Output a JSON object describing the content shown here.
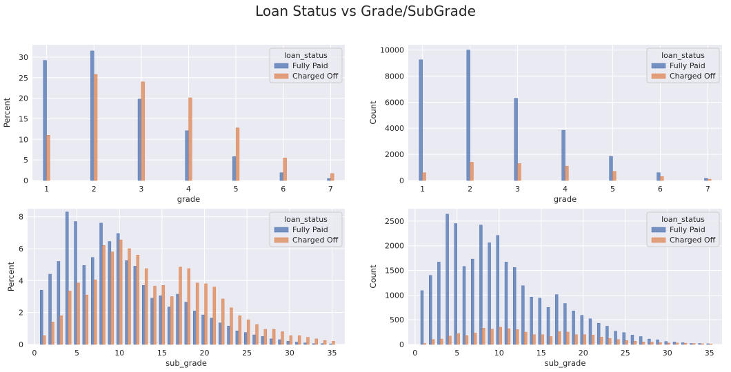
{
  "title": "Loan Status vs Grade/SubGrade",
  "colors": {
    "fully_paid": "#4c72b0",
    "charged_off": "#dd8452",
    "panel_bg": "#eaeaf2",
    "grid": "#ffffff"
  },
  "chart_data": [
    {
      "type": "bar",
      "xlabel": "grade",
      "ylabel": "Percent",
      "xlim": [
        0.7,
        7.3
      ],
      "ylim": [
        0,
        33
      ],
      "xticks": [
        1,
        2,
        3,
        4,
        5,
        6,
        7
      ],
      "yticks": [
        0,
        5,
        10,
        15,
        20,
        25,
        30
      ],
      "grid": true,
      "legend": {
        "title": "loan_status",
        "placement": "top-right"
      },
      "categories": [
        1,
        2,
        3,
        4,
        5,
        6,
        7
      ],
      "series": [
        {
          "name": "Fully Paid",
          "values": [
            29.2,
            31.5,
            19.8,
            12.1,
            5.8,
            1.9,
            0.5
          ]
        },
        {
          "name": "Charged Off",
          "values": [
            11.0,
            25.8,
            24.0,
            20.1,
            12.8,
            5.5,
            1.7
          ]
        }
      ]
    },
    {
      "type": "bar",
      "xlabel": "grade",
      "ylabel": "Count",
      "xlim": [
        0.7,
        7.3
      ],
      "ylim": [
        0,
        10400
      ],
      "xticks": [
        1,
        2,
        3,
        4,
        5,
        6,
        7
      ],
      "yticks": [
        0,
        2000,
        4000,
        6000,
        8000,
        10000
      ],
      "grid": true,
      "legend": {
        "title": "loan_status",
        "placement": "top-right"
      },
      "categories": [
        1,
        2,
        3,
        4,
        5,
        6,
        7
      ],
      "series": [
        {
          "name": "Fully Paid",
          "values": [
            9250,
            10000,
            6300,
            3850,
            1850,
            600,
            170
          ]
        },
        {
          "name": "Charged Off",
          "values": [
            600,
            1400,
            1300,
            1100,
            700,
            300,
            100
          ]
        }
      ]
    },
    {
      "type": "bar",
      "xlabel": "sub_grade",
      "ylabel": "Percent",
      "xlim": [
        -0.8,
        36.5
      ],
      "ylim": [
        0,
        8.5
      ],
      "xticks": [
        0,
        5,
        10,
        15,
        20,
        25,
        30,
        35
      ],
      "yticks": [
        0,
        2,
        4,
        6,
        8
      ],
      "grid": true,
      "legend": {
        "title": "loan_status",
        "placement": "top-right"
      },
      "categories": [
        1,
        2,
        3,
        4,
        5,
        6,
        7,
        8,
        9,
        10,
        11,
        12,
        13,
        14,
        15,
        16,
        17,
        18,
        19,
        20,
        21,
        22,
        23,
        24,
        25,
        26,
        27,
        28,
        29,
        30,
        31,
        32,
        33,
        34,
        35
      ],
      "series": [
        {
          "name": "Fully Paid",
          "values": [
            3.4,
            4.4,
            5.2,
            8.3,
            7.7,
            4.95,
            5.45,
            7.6,
            6.45,
            6.95,
            5.25,
            4.9,
            3.7,
            2.9,
            3.05,
            2.35,
            3.15,
            2.65,
            2.1,
            1.85,
            1.65,
            1.35,
            1.15,
            0.85,
            0.75,
            0.6,
            0.5,
            0.35,
            0.3,
            0.2,
            0.15,
            0.1,
            0.05,
            0.05,
            0.04
          ]
        },
        {
          "name": "Charged Off",
          "values": [
            0.55,
            1.4,
            1.8,
            3.35,
            3.85,
            3.1,
            4.05,
            6.2,
            5.8,
            6.55,
            6.0,
            5.6,
            4.75,
            3.65,
            3.7,
            3.0,
            4.85,
            4.75,
            3.85,
            3.8,
            3.6,
            2.85,
            2.3,
            1.8,
            1.55,
            1.25,
            0.95,
            0.95,
            0.8,
            0.55,
            0.55,
            0.45,
            0.35,
            0.25,
            0.2
          ]
        }
      ]
    },
    {
      "type": "bar",
      "xlabel": "sub_grade",
      "ylabel": "Count",
      "xlim": [
        -0.8,
        36.5
      ],
      "ylim": [
        0,
        2750
      ],
      "xticks": [
        0,
        5,
        10,
        15,
        20,
        25,
        30,
        35
      ],
      "yticks": [
        0,
        500,
        1000,
        1500,
        2000,
        2500
      ],
      "grid": true,
      "legend": {
        "title": "loan_status",
        "placement": "top-right"
      },
      "categories": [
        1,
        2,
        3,
        4,
        5,
        6,
        7,
        8,
        9,
        10,
        11,
        12,
        13,
        14,
        15,
        16,
        17,
        18,
        19,
        20,
        21,
        22,
        23,
        24,
        25,
        26,
        27,
        28,
        29,
        30,
        31,
        32,
        33,
        34,
        35
      ],
      "series": [
        {
          "name": "Fully Paid",
          "values": [
            1090,
            1400,
            1670,
            2640,
            2450,
            1580,
            1730,
            2420,
            2060,
            2210,
            1670,
            1560,
            1190,
            960,
            940,
            750,
            1010,
            830,
            680,
            590,
            520,
            430,
            370,
            270,
            240,
            190,
            160,
            110,
            95,
            60,
            50,
            35,
            20,
            20,
            15
          ]
        },
        {
          "name": "Charged Off",
          "values": [
            20,
            100,
            110,
            170,
            220,
            180,
            230,
            330,
            310,
            350,
            320,
            300,
            250,
            200,
            200,
            160,
            260,
            250,
            200,
            200,
            190,
            150,
            120,
            100,
            80,
            65,
            50,
            50,
            40,
            30,
            30,
            25,
            20,
            15,
            10
          ]
        }
      ]
    }
  ]
}
